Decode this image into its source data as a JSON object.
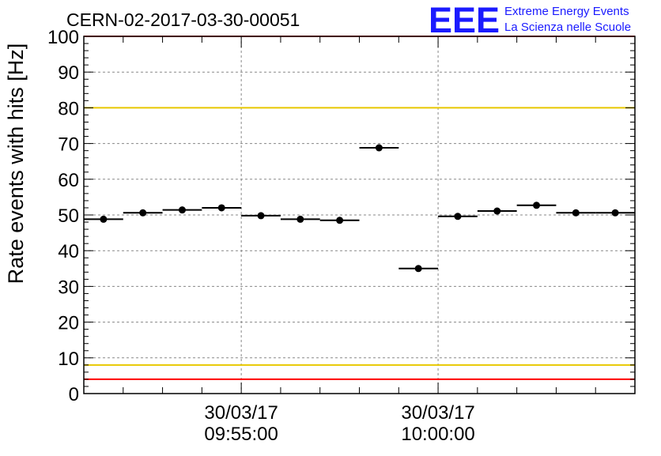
{
  "title": "CERN-02-2017-03-30-00051",
  "logo": {
    "letters": "EEE",
    "line1": "Extreme Energy Events",
    "line2": "La Scienza nelle Scuole",
    "color": "#1a1aff"
  },
  "chart_data": {
    "type": "scatter",
    "title": "CERN-02-2017-03-30-00051",
    "xlabel": "",
    "ylabel": "Rate events with hits [Hz]",
    "ylim": [
      0,
      100
    ],
    "yticks": [
      0,
      10,
      20,
      30,
      40,
      50,
      60,
      70,
      80,
      90,
      100
    ],
    "x_time_range": [
      "2017-03-30 09:51:00",
      "2017-03-30 10:05:00"
    ],
    "xtick_labels": [
      {
        "date": "30/03/17",
        "time": "09:55:00"
      },
      {
        "date": "30/03/17",
        "time": "10:00:00"
      }
    ],
    "bin_width_seconds": 60,
    "grid": true,
    "series": [
      {
        "marker_color": "#000000",
        "points": [
          {
            "x": "09:51:00",
            "y": 48.8
          },
          {
            "x": "09:52:00",
            "y": 50.6
          },
          {
            "x": "09:53:00",
            "y": 51.4
          },
          {
            "x": "09:54:00",
            "y": 52.0
          },
          {
            "x": "09:55:00",
            "y": 49.8
          },
          {
            "x": "09:56:00",
            "y": 48.8
          },
          {
            "x": "09:57:00",
            "y": 48.5
          },
          {
            "x": "09:58:00",
            "y": 68.8
          },
          {
            "x": "09:59:00",
            "y": 35.0
          },
          {
            "x": "10:00:00",
            "y": 49.6
          },
          {
            "x": "10:01:00",
            "y": 51.1
          },
          {
            "x": "10:02:00",
            "y": 52.7
          },
          {
            "x": "10:03:00",
            "y": 50.6
          },
          {
            "x": "10:04:00",
            "y": 50.6
          }
        ]
      }
    ],
    "reference_lines": [
      {
        "y": 100,
        "color": "#ff0000"
      },
      {
        "y": 80,
        "color": "#e8c800"
      },
      {
        "y": 8,
        "color": "#e8c800"
      },
      {
        "y": 4,
        "color": "#ff0000"
      }
    ]
  }
}
